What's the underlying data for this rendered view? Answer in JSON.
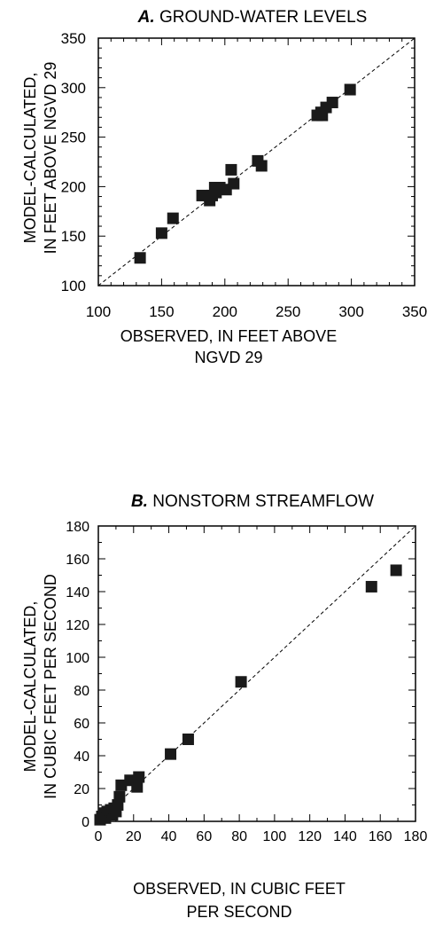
{
  "chart_data": [
    {
      "type": "scatter",
      "panel_letter": "A.",
      "title": "GROUND-WATER LEVELS",
      "xlabel": [
        "OBSERVED, IN FEET ABOVE",
        "NGVD 29"
      ],
      "ylabel": [
        "MODEL-CALCULATED,",
        "IN FEET ABOVE NGVD 29"
      ],
      "xlim": [
        100,
        350
      ],
      "ylim": [
        100,
        350
      ],
      "x_ticks": [
        100,
        150,
        200,
        250,
        300,
        350
      ],
      "y_ticks": [
        100,
        150,
        200,
        250,
        300,
        350
      ],
      "reference_line": "1:1 dashed",
      "points": [
        {
          "x": 133,
          "y": 128
        },
        {
          "x": 150,
          "y": 153
        },
        {
          "x": 159,
          "y": 168
        },
        {
          "x": 182,
          "y": 191
        },
        {
          "x": 188,
          "y": 186
        },
        {
          "x": 190,
          "y": 191
        },
        {
          "x": 192,
          "y": 199
        },
        {
          "x": 193,
          "y": 194
        },
        {
          "x": 196,
          "y": 199
        },
        {
          "x": 201,
          "y": 197
        },
        {
          "x": 205,
          "y": 217
        },
        {
          "x": 207,
          "y": 203
        },
        {
          "x": 226,
          "y": 226
        },
        {
          "x": 229,
          "y": 221
        },
        {
          "x": 273,
          "y": 272
        },
        {
          "x": 276,
          "y": 275
        },
        {
          "x": 277,
          "y": 272
        },
        {
          "x": 280,
          "y": 280
        },
        {
          "x": 285,
          "y": 285
        },
        {
          "x": 299,
          "y": 298
        }
      ]
    },
    {
      "type": "scatter",
      "panel_letter": "B.",
      "title": "NONSTORM STREAMFLOW",
      "xlabel": [
        "OBSERVED, IN CUBIC FEET",
        "PER SECOND"
      ],
      "ylabel": [
        "MODEL-CALCULATED,",
        "IN CUBIC FEET PER SECOND"
      ],
      "xlim": [
        0,
        180
      ],
      "ylim": [
        0,
        180
      ],
      "x_ticks": [
        0,
        20,
        40,
        60,
        80,
        100,
        120,
        140,
        160,
        180
      ],
      "y_ticks": [
        0,
        20,
        40,
        60,
        80,
        100,
        120,
        140,
        160,
        180
      ],
      "reference_line": "1:1 dashed",
      "points": [
        {
          "x": 1,
          "y": 1
        },
        {
          "x": 2,
          "y": 3
        },
        {
          "x": 3,
          "y": 5
        },
        {
          "x": 4,
          "y": 2
        },
        {
          "x": 5,
          "y": 6
        },
        {
          "x": 7,
          "y": 7
        },
        {
          "x": 8,
          "y": 4
        },
        {
          "x": 9,
          "y": 8
        },
        {
          "x": 10,
          "y": 6
        },
        {
          "x": 11,
          "y": 10
        },
        {
          "x": 12,
          "y": 15
        },
        {
          "x": 13,
          "y": 22
        },
        {
          "x": 18,
          "y": 25
        },
        {
          "x": 22,
          "y": 21
        },
        {
          "x": 23,
          "y": 27
        },
        {
          "x": 41,
          "y": 41
        },
        {
          "x": 51,
          "y": 50
        },
        {
          "x": 81,
          "y": 85
        },
        {
          "x": 155,
          "y": 143
        },
        {
          "x": 169,
          "y": 153
        }
      ]
    }
  ]
}
